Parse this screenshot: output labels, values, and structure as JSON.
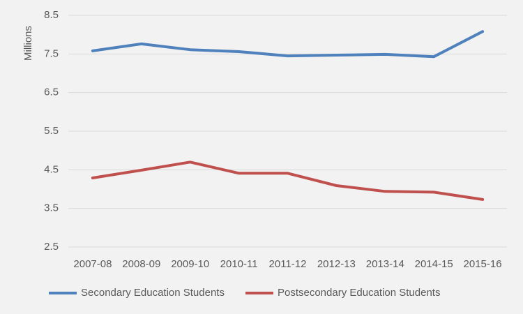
{
  "chart_data": {
    "type": "line",
    "y_label": "Millions",
    "categories": [
      "2007-08",
      "2008-09",
      "2009-10",
      "2010-11",
      "2011-12",
      "2012-13",
      "2013-14",
      "2014-15",
      "2015-16"
    ],
    "series": [
      {
        "name": "Secondary Education Students",
        "color": "#4f81bd",
        "values": [
          7.58,
          7.76,
          7.61,
          7.56,
          7.45,
          7.47,
          7.49,
          7.43,
          8.08
        ]
      },
      {
        "name": "Postsecondary Education Students",
        "color": "#c0504d",
        "values": [
          4.29,
          4.49,
          4.7,
          4.41,
          4.41,
          4.09,
          3.94,
          3.92,
          3.73
        ]
      }
    ],
    "ylim": [
      2.5,
      8.5
    ],
    "yticks": [
      2.5,
      3.5,
      4.5,
      5.5,
      6.5,
      7.5,
      8.5
    ],
    "grid": true,
    "legend": "bottom"
  }
}
